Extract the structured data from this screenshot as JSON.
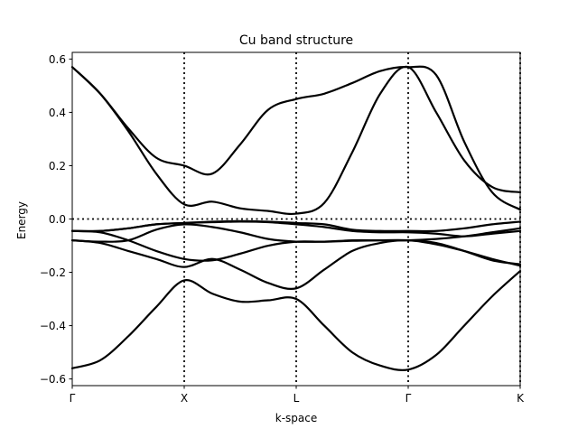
{
  "chart_data": {
    "type": "line",
    "title": "Cu band structure",
    "xlabel": "k-space",
    "ylabel": "Energy",
    "ylim": [
      -0.625,
      0.625
    ],
    "xlim": [
      0,
      4
    ],
    "x_ticks": [
      {
        "label": "Γ",
        "value": 0
      },
      {
        "label": "X",
        "value": 1
      },
      {
        "label": "L",
        "value": 2
      },
      {
        "label": "Γ",
        "value": 3
      },
      {
        "label": "K",
        "value": 4
      }
    ],
    "y_ticks": [
      {
        "label": "0.6",
        "value": 0.6
      },
      {
        "label": "0.4",
        "value": 0.4
      },
      {
        "label": "0.2",
        "value": 0.2
      },
      {
        "label": "0.0",
        "value": 0.0
      },
      {
        "label": "−0.2",
        "value": -0.2
      },
      {
        "label": "−0.4",
        "value": -0.4
      },
      {
        "label": "−0.6",
        "value": -0.6
      }
    ],
    "vertical_dotted_lines_at_x": [
      1,
      2,
      3,
      4
    ],
    "horizontal_dotted_line_at_y": 0.0,
    "line_color": "#000000",
    "series": [
      {
        "x": [
          0,
          0.25,
          0.5,
          0.75,
          1,
          1.25,
          1.5,
          1.75,
          2,
          2.25,
          2.5,
          2.75,
          3,
          3.25,
          3.5,
          3.75,
          4
        ],
        "y": [
          -0.56,
          -0.53,
          -0.44,
          -0.33,
          -0.23,
          -0.28,
          -0.31,
          -0.305,
          -0.3,
          -0.4,
          -0.5,
          -0.55,
          -0.565,
          -0.51,
          -0.4,
          -0.29,
          -0.195
        ]
      },
      {
        "x": [
          0,
          0.25,
          0.5,
          0.75,
          1,
          1.25,
          1.5,
          1.75,
          2,
          2.25,
          2.5,
          2.75,
          3,
          3.25,
          3.5,
          3.75,
          4
        ],
        "y": [
          -0.08,
          -0.09,
          -0.12,
          -0.15,
          -0.18,
          -0.15,
          -0.19,
          -0.24,
          -0.26,
          -0.19,
          -0.12,
          -0.09,
          -0.08,
          -0.095,
          -0.12,
          -0.15,
          -0.175
        ]
      },
      {
        "x": [
          0,
          0.25,
          0.5,
          0.75,
          1,
          1.25,
          1.5,
          1.75,
          2,
          2.25,
          2.5,
          2.75,
          3,
          3.25,
          3.5,
          3.75,
          4
        ],
        "y": [
          -0.08,
          -0.085,
          -0.08,
          -0.04,
          -0.02,
          -0.03,
          -0.05,
          -0.075,
          -0.085,
          -0.085,
          -0.082,
          -0.08,
          -0.08,
          -0.09,
          -0.12,
          -0.155,
          -0.17
        ]
      },
      {
        "x": [
          0,
          0.25,
          0.5,
          0.75,
          1,
          1.25,
          1.5,
          1.75,
          2,
          2.25,
          2.5,
          2.75,
          3,
          3.25,
          3.5,
          3.75,
          4
        ],
        "y": [
          -0.045,
          -0.05,
          -0.08,
          -0.12,
          -0.15,
          -0.155,
          -0.13,
          -0.1,
          -0.085,
          -0.085,
          -0.08,
          -0.08,
          -0.08,
          -0.075,
          -0.065,
          -0.05,
          -0.035
        ]
      },
      {
        "x": [
          0,
          0.25,
          0.5,
          0.75,
          1,
          1.25,
          1.5,
          1.75,
          2,
          2.25,
          2.5,
          2.75,
          3,
          3.25,
          3.5,
          3.75,
          4
        ],
        "y": [
          -0.045,
          -0.045,
          -0.035,
          -0.02,
          -0.015,
          -0.012,
          -0.01,
          -0.012,
          -0.02,
          -0.03,
          -0.045,
          -0.05,
          -0.05,
          -0.055,
          -0.065,
          -0.055,
          -0.045
        ]
      },
      {
        "x": [
          0,
          0.25,
          0.5,
          0.75,
          1,
          1.25,
          1.5,
          1.75,
          2,
          2.25,
          2.5,
          2.75,
          3,
          3.25,
          3.5,
          3.75,
          4
        ],
        "y": [
          -0.045,
          -0.045,
          -0.035,
          -0.02,
          -0.015,
          -0.01,
          -0.008,
          -0.01,
          -0.015,
          -0.02,
          -0.04,
          -0.045,
          -0.045,
          -0.045,
          -0.035,
          -0.02,
          -0.01
        ]
      },
      {
        "x": [
          0,
          0.25,
          0.5,
          0.75,
          1,
          1.25,
          1.5,
          1.75,
          2,
          2.25,
          2.5,
          2.75,
          3,
          3.25,
          3.5,
          3.75,
          4
        ],
        "y": [
          0.57,
          0.47,
          0.33,
          0.17,
          0.055,
          0.065,
          0.04,
          0.03,
          0.02,
          0.06,
          0.25,
          0.47,
          0.57,
          0.4,
          0.22,
          0.12,
          0.1
        ]
      },
      {
        "x": [
          0,
          0.25,
          0.5,
          0.75,
          1,
          1.25,
          1.5,
          1.75,
          2,
          2.25,
          2.5,
          2.75,
          3,
          3.25,
          3.5,
          3.75,
          4
        ],
        "y": [
          0.57,
          0.47,
          0.34,
          0.23,
          0.2,
          0.17,
          0.28,
          0.41,
          0.45,
          0.47,
          0.51,
          0.555,
          0.57,
          0.54,
          0.29,
          0.1,
          0.035
        ]
      }
    ]
  }
}
